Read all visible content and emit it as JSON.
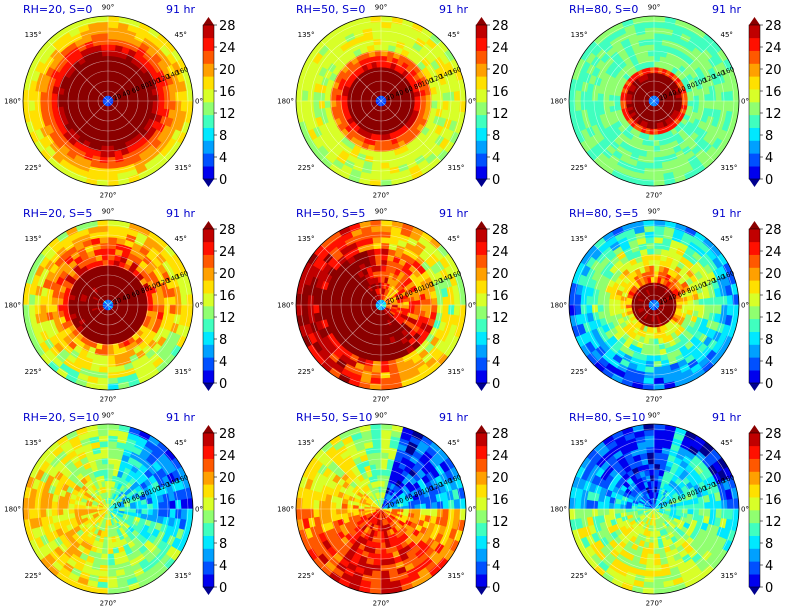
{
  "colormap": {
    "name": "jet",
    "colors": [
      "#00008f",
      "#0000ee",
      "#0050ff",
      "#00a0ff",
      "#00e8ff",
      "#40ffbf",
      "#90ff70",
      "#d8ff28",
      "#ffe000",
      "#ffa000",
      "#ff5800",
      "#ff1000",
      "#c00000",
      "#8b0000"
    ]
  },
  "chart_data": [
    {
      "type": "heatmap",
      "title_left": "RH=20, S=0",
      "title_right": "91 hr",
      "rh": 20,
      "s": 0,
      "angle_labels": [
        "90°",
        "45°",
        "0°",
        "315°",
        "270°",
        "225°",
        "180°",
        "135°"
      ],
      "radial_labels": [
        "20",
        "40",
        "60",
        "80",
        "100",
        "120",
        "140",
        "160"
      ],
      "colorbar": {
        "ticks": [
          "0",
          "4",
          "8",
          "12",
          "16",
          "20",
          "24",
          "28"
        ],
        "range": [
          0,
          28
        ],
        "extend": "both"
      }
    },
    {
      "type": "heatmap",
      "title_left": "RH=50, S=0",
      "title_right": "91 hr",
      "rh": 50,
      "s": 0,
      "angle_labels": [
        "90°",
        "45°",
        "0°",
        "315°",
        "270°",
        "225°",
        "180°",
        "135°"
      ],
      "radial_labels": [
        "20",
        "40",
        "60",
        "80",
        "100",
        "120",
        "140",
        "160"
      ],
      "colorbar": {
        "ticks": [
          "0",
          "4",
          "8",
          "12",
          "16",
          "20",
          "24",
          "28"
        ],
        "range": [
          0,
          28
        ],
        "extend": "both"
      }
    },
    {
      "type": "heatmap",
      "title_left": "RH=80, S=0",
      "title_right": "91 hr",
      "rh": 80,
      "s": 0,
      "angle_labels": [
        "90°",
        "45°",
        "0°",
        "315°",
        "270°",
        "225°",
        "180°",
        "135°"
      ],
      "radial_labels": [
        "20",
        "40",
        "60",
        "80",
        "100",
        "120",
        "140",
        "160"
      ],
      "colorbar": {
        "ticks": [
          "0",
          "4",
          "8",
          "12",
          "16",
          "20",
          "24",
          "28"
        ],
        "range": [
          0,
          28
        ],
        "extend": "both"
      }
    },
    {
      "type": "heatmap",
      "title_left": "RH=20, S=5",
      "title_right": "91 hr",
      "rh": 20,
      "s": 5,
      "angle_labels": [
        "90°",
        "45°",
        "0°",
        "315°",
        "270°",
        "225°",
        "180°",
        "135°"
      ],
      "radial_labels": [
        "20",
        "40",
        "60",
        "80",
        "100",
        "120",
        "140",
        "160"
      ],
      "colorbar": {
        "ticks": [
          "0",
          "4",
          "8",
          "12",
          "16",
          "20",
          "24",
          "28"
        ],
        "range": [
          0,
          28
        ],
        "extend": "both"
      }
    },
    {
      "type": "heatmap",
      "title_left": "RH=50, S=5",
      "title_right": "91 hr",
      "rh": 50,
      "s": 5,
      "angle_labels": [
        "90°",
        "45°",
        "0°",
        "315°",
        "270°",
        "225°",
        "180°",
        "135°"
      ],
      "radial_labels": [
        "20",
        "40",
        "60",
        "80",
        "100",
        "120",
        "140",
        "160"
      ],
      "colorbar": {
        "ticks": [
          "0",
          "4",
          "8",
          "12",
          "16",
          "20",
          "24",
          "28"
        ],
        "range": [
          0,
          28
        ],
        "extend": "both"
      }
    },
    {
      "type": "heatmap",
      "title_left": "RH=80, S=5",
      "title_right": "91 hr",
      "rh": 80,
      "s": 5,
      "angle_labels": [
        "90°",
        "45°",
        "0°",
        "315°",
        "270°",
        "225°",
        "180°",
        "135°"
      ],
      "radial_labels": [
        "20",
        "40",
        "60",
        "80",
        "100",
        "120",
        "140",
        "160"
      ],
      "colorbar": {
        "ticks": [
          "0",
          "4",
          "8",
          "12",
          "16",
          "20",
          "24",
          "28"
        ],
        "range": [
          0,
          28
        ],
        "extend": "both"
      }
    },
    {
      "type": "heatmap",
      "title_left": "RH=20, S=10",
      "title_right": "91 hr",
      "rh": 20,
      "s": 10,
      "angle_labels": [
        "90°",
        "45°",
        "0°",
        "315°",
        "270°",
        "225°",
        "180°",
        "135°"
      ],
      "radial_labels": [
        "20",
        "40",
        "60",
        "80",
        "100",
        "120",
        "140",
        "160"
      ],
      "colorbar": {
        "ticks": [
          "0",
          "4",
          "8",
          "12",
          "16",
          "20",
          "24",
          "28"
        ],
        "range": [
          0,
          28
        ],
        "extend": "both"
      }
    },
    {
      "type": "heatmap",
      "title_left": "RH=50, S=10",
      "title_right": "91 hr",
      "rh": 50,
      "s": 10,
      "angle_labels": [
        "90°",
        "45°",
        "0°",
        "315°",
        "270°",
        "225°",
        "180°",
        "135°"
      ],
      "radial_labels": [
        "20",
        "40",
        "60",
        "80",
        "100",
        "120",
        "140",
        "160"
      ],
      "colorbar": {
        "ticks": [
          "0",
          "4",
          "8",
          "12",
          "16",
          "20",
          "24",
          "28"
        ],
        "range": [
          0,
          28
        ],
        "extend": "both"
      }
    },
    {
      "type": "heatmap",
      "title_left": "RH=80, S=10",
      "title_right": "91 hr",
      "rh": 80,
      "s": 10,
      "angle_labels": [
        "90°",
        "45°",
        "0°",
        "315°",
        "270°",
        "225°",
        "180°",
        "135°"
      ],
      "radial_labels": [
        "20",
        "40",
        "60",
        "80",
        "100",
        "120",
        "140",
        "160"
      ],
      "colorbar": {
        "ticks": [
          "0",
          "4",
          "8",
          "12",
          "16",
          "20",
          "24",
          "28"
        ],
        "range": [
          0,
          28
        ],
        "extend": "both"
      }
    }
  ]
}
